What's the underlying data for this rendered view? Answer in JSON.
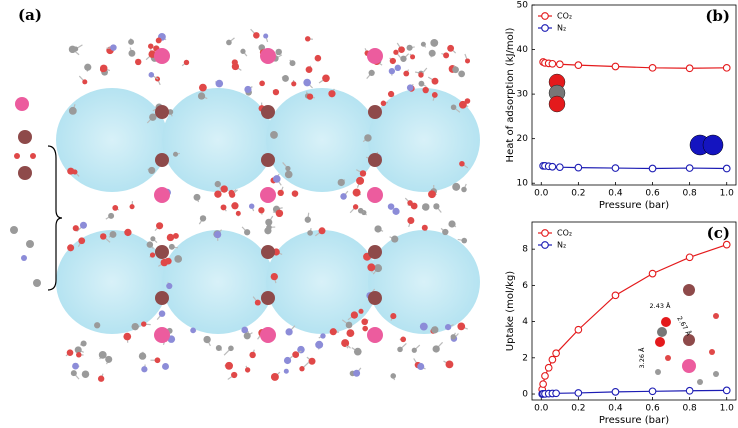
{
  "structure_panel": {
    "label": "(a)"
  },
  "chart_data": [
    {
      "type": "line",
      "panel_label": "(b)",
      "xlabel": "Pressure (bar)",
      "ylabel": "Heat of adsorption (kJ/mol)",
      "x": [
        0.01,
        0.02,
        0.04,
        0.06,
        0.1,
        0.2,
        0.4,
        0.6,
        0.8,
        1.0
      ],
      "series": [
        {
          "name": "CO₂",
          "color": "#e41a1c",
          "values": [
            37.2,
            37.0,
            36.9,
            36.8,
            36.7,
            36.5,
            36.2,
            35.9,
            35.8,
            35.9
          ]
        },
        {
          "name": "N₂",
          "color": "#1c1cb4",
          "values": [
            13.9,
            13.9,
            13.8,
            13.7,
            13.6,
            13.5,
            13.4,
            13.3,
            13.4,
            13.3
          ]
        }
      ],
      "xlim": [
        -0.05,
        1.05
      ],
      "ylim": [
        9.6,
        50
      ],
      "xticks": [
        {
          "value": 0,
          "label": "0.0"
        },
        0.2,
        0.4,
        0.6,
        0.8,
        {
          "value": 1,
          "label": "1.0"
        }
      ],
      "yticks": [
        10,
        20,
        30,
        40,
        50
      ],
      "legend": "upper left",
      "grid": false
    },
    {
      "type": "line",
      "panel_label": "(c)",
      "xlabel": "Pressure (bar)",
      "ylabel": "Uptake (mol/kg)",
      "x": [
        0.005,
        0.01,
        0.02,
        0.04,
        0.06,
        0.08,
        0.2,
        0.4,
        0.6,
        0.8,
        1.0
      ],
      "series": [
        {
          "name": "CO₂",
          "color": "#e41a1c",
          "values": [
            0.25,
            0.55,
            1.0,
            1.45,
            1.9,
            2.25,
            3.55,
            5.45,
            6.65,
            7.55,
            8.25
          ]
        },
        {
          "name": "N₂",
          "color": "#1c1cb4",
          "values": [
            0.0,
            0.01,
            0.01,
            0.02,
            0.03,
            0.04,
            0.06,
            0.12,
            0.15,
            0.18,
            0.2
          ]
        }
      ],
      "xlim": [
        -0.05,
        1.05
      ],
      "ylim": [
        -0.33,
        9.5
      ],
      "xticks": [
        {
          "value": 0,
          "label": "0.0"
        },
        0.2,
        0.4,
        0.6,
        0.8,
        {
          "value": 1,
          "label": "1.0"
        }
      ],
      "yticks": [
        0,
        2,
        4,
        6,
        8
      ],
      "legend": "upper left",
      "grid": false,
      "annotations": [
        "2.43 Å",
        "2.67 Å",
        "3.26 Å"
      ]
    }
  ]
}
